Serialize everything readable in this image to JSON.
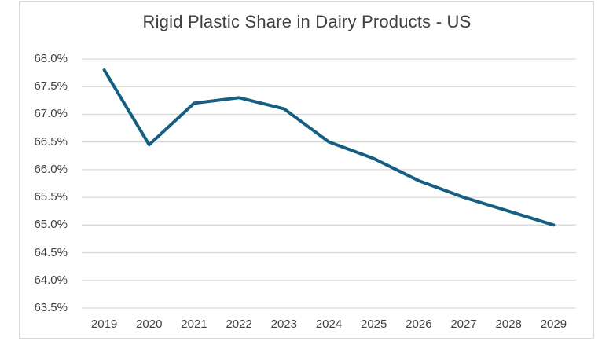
{
  "chart": {
    "title": "Rigid Plastic Share in Dairy Products - US"
  },
  "colors": {
    "accent": "#156082",
    "gridline": "#D9D9D9",
    "frame_border": "#D9D9D9",
    "text": "#404040",
    "background": "#FFFFFF"
  },
  "chart_data": {
    "type": "line",
    "title": "Rigid Plastic Share in Dairy Products - US",
    "categories": [
      "2019",
      "2020",
      "2021",
      "2022",
      "2023",
      "2024",
      "2025",
      "2026",
      "2027",
      "2028",
      "2029"
    ],
    "series": [
      {
        "name": "Rigid Plastic Share",
        "values": [
          67.8,
          66.45,
          67.2,
          67.3,
          67.1,
          66.5,
          66.2,
          65.8,
          65.5,
          65.25,
          65.0
        ]
      }
    ],
    "yticks": [
      {
        "value": 68.0,
        "label": "68.0%"
      },
      {
        "value": 67.5,
        "label": "67.5%"
      },
      {
        "value": 67.0,
        "label": "67.0%"
      },
      {
        "value": 66.5,
        "label": "66.5%"
      },
      {
        "value": 66.0,
        "label": "66.0%"
      },
      {
        "value": 65.5,
        "label": "65.5%"
      },
      {
        "value": 65.0,
        "label": "65.0%"
      },
      {
        "value": 64.5,
        "label": "64.5%"
      },
      {
        "value": 64.0,
        "label": "64.0%"
      },
      {
        "value": 63.5,
        "label": "63.5%"
      }
    ],
    "ylim": [
      63.5,
      68.0
    ],
    "xlabel": "",
    "ylabel": "",
    "grid": "horizontal",
    "legend": "none"
  }
}
